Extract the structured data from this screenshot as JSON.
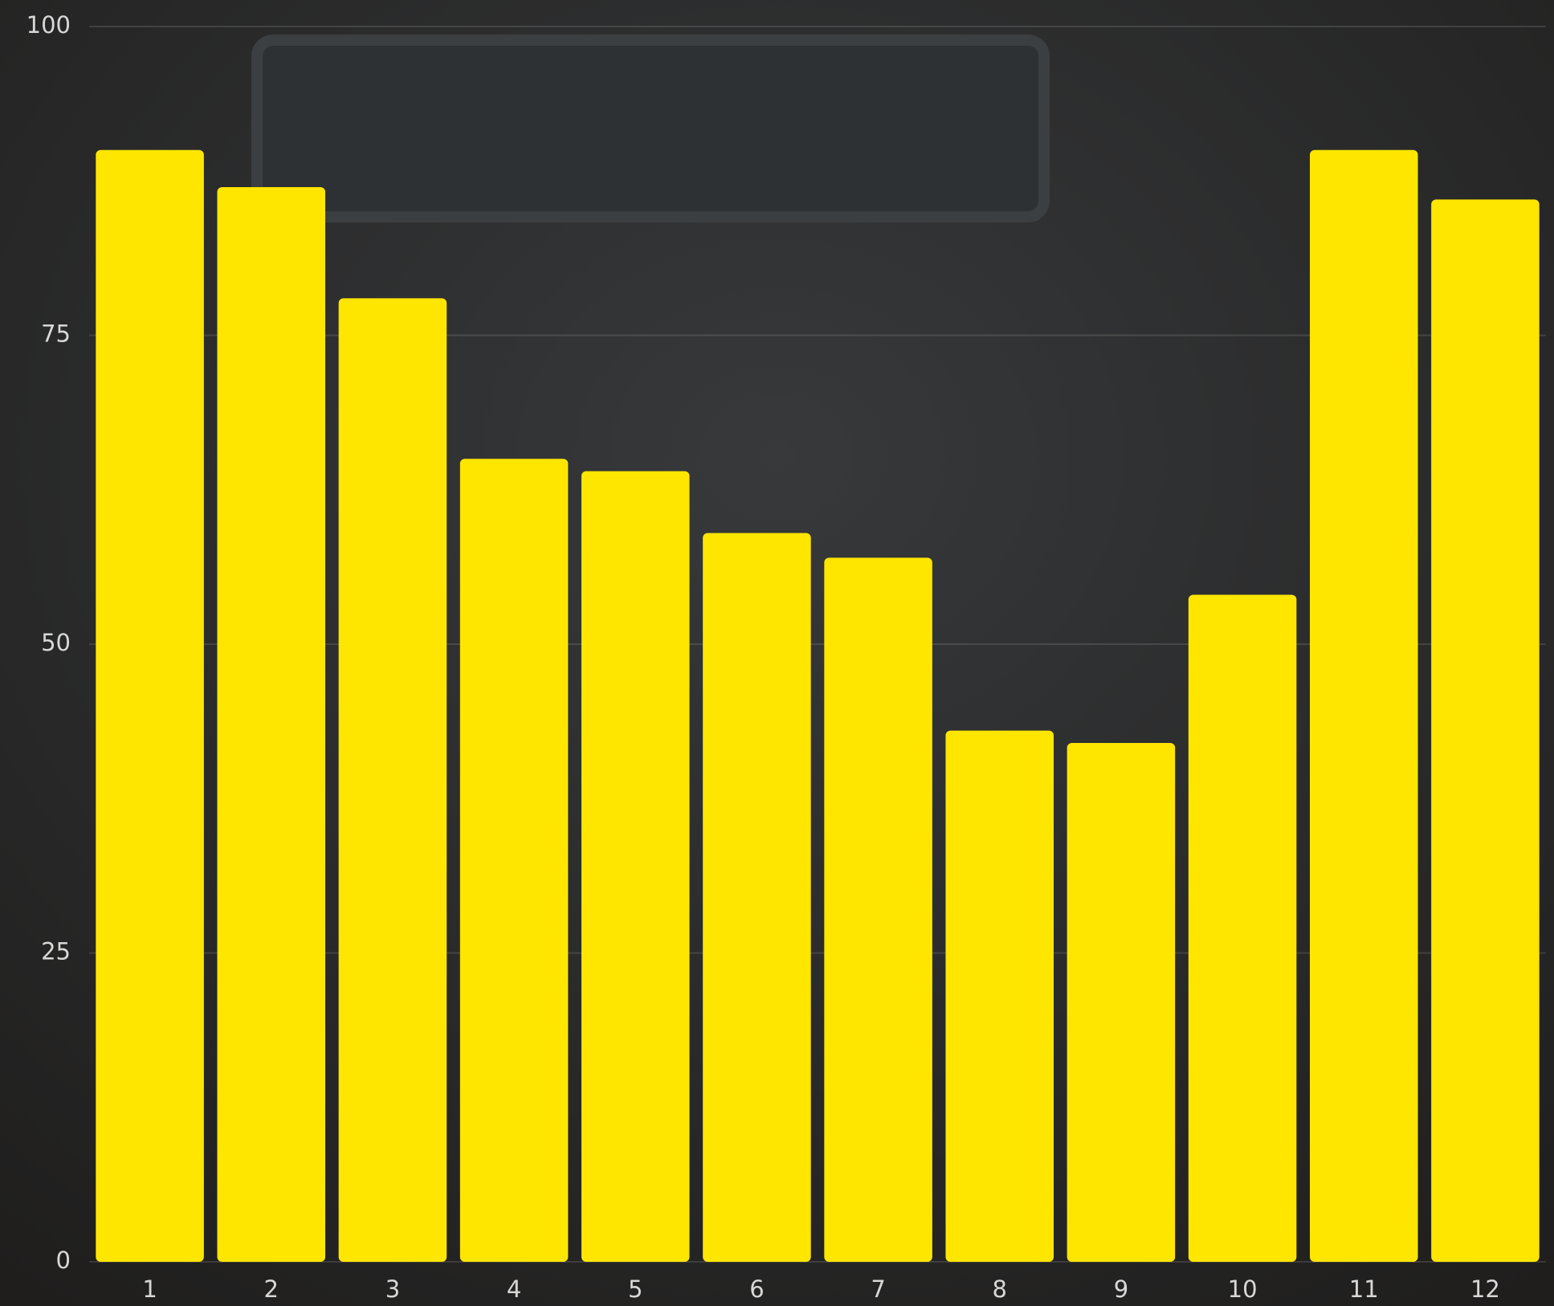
{
  "chart_data": {
    "type": "bar",
    "categories": [
      "1",
      "2",
      "3",
      "4",
      "5",
      "6",
      "7",
      "8",
      "9",
      "10",
      "11",
      "12"
    ],
    "values": [
      90,
      87,
      78,
      65,
      64,
      59,
      57,
      43,
      42,
      54,
      90,
      86
    ],
    "color": "#ffe600",
    "ylim": [
      0,
      100
    ],
    "yticks": [
      0,
      25,
      50,
      75,
      100
    ],
    "grid": true
  }
}
